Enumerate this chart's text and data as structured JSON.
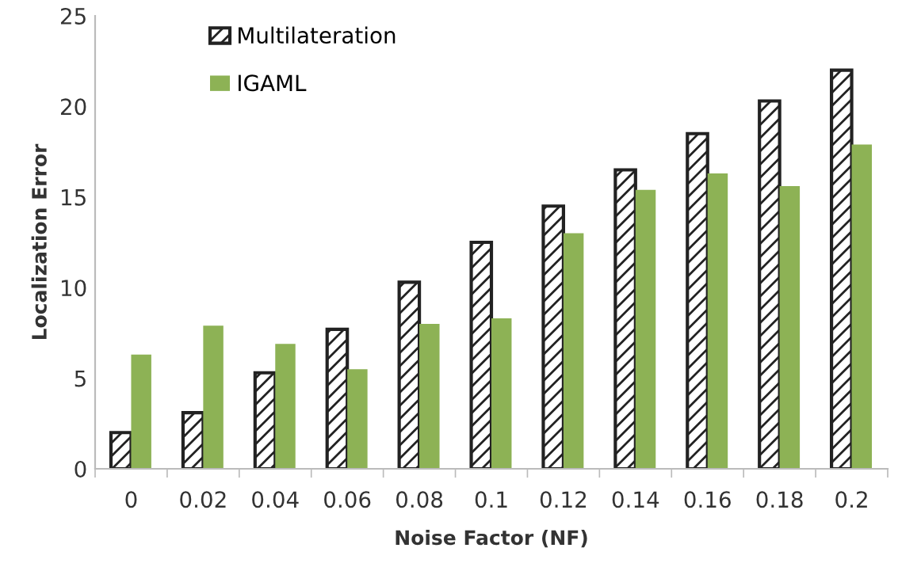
{
  "chart_data": {
    "type": "bar",
    "xlabel": "Noise Factor (NF)",
    "ylabel": "Localization Error",
    "categories": [
      "0",
      "0.02",
      "0.04",
      "0.06",
      "0.08",
      "0.1",
      "0.12",
      "0.14",
      "0.16",
      "0.18",
      "0.2"
    ],
    "series": [
      {
        "name": "Multilateration",
        "color": "#222222",
        "values": [
          2.0,
          3.1,
          5.3,
          7.7,
          10.3,
          12.5,
          14.5,
          16.5,
          18.5,
          20.3,
          22.0
        ]
      },
      {
        "name": "IGAML",
        "color": "#8db255",
        "values": [
          6.3,
          7.9,
          6.9,
          5.5,
          8.0,
          8.3,
          13.0,
          15.4,
          16.3,
          15.6,
          17.9
        ]
      }
    ],
    "ylim": [
      0,
      25
    ],
    "yticks": [
      0,
      5,
      10,
      15,
      20,
      25
    ],
    "grid": false,
    "legend": "top left"
  }
}
